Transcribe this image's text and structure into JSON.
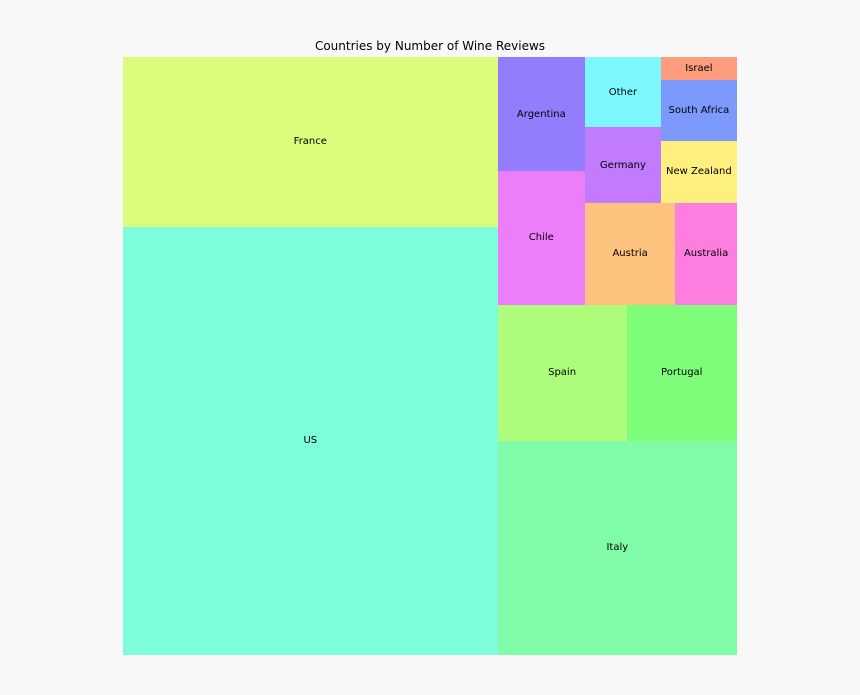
{
  "chart_data": {
    "type": "treemap",
    "title": "Countries by Number of Wine Reviews",
    "items": [
      {
        "label": "US",
        "value": 24960,
        "color": "#7dfdd9"
      },
      {
        "label": "France",
        "value": 9880,
        "color": "#dafe7b"
      },
      {
        "label": "Italy",
        "value": 7980,
        "color": "#80fca9"
      },
      {
        "label": "Spain",
        "value": 2720,
        "color": "#adfd7b"
      },
      {
        "label": "Portugal",
        "value": 2330,
        "color": "#7efd7a"
      },
      {
        "label": "Chile",
        "value": 1820,
        "color": "#ec7efa"
      },
      {
        "label": "Argentina",
        "value": 1550,
        "color": "#927dfd"
      },
      {
        "label": "Austria",
        "value": 1430,
        "color": "#fdc37e"
      },
      {
        "label": "Australia",
        "value": 980,
        "color": "#fd7edf"
      },
      {
        "label": "Germany",
        "value": 890,
        "color": "#c17bfc"
      },
      {
        "label": "Other",
        "value": 830,
        "color": "#7ef6fe"
      },
      {
        "label": "New Zealand",
        "value": 740,
        "color": "#fdf07e"
      },
      {
        "label": "South Africa",
        "value": 720,
        "color": "#7c9afb"
      },
      {
        "label": "Israel",
        "value": 270,
        "color": "#fd9d7e"
      }
    ]
  }
}
